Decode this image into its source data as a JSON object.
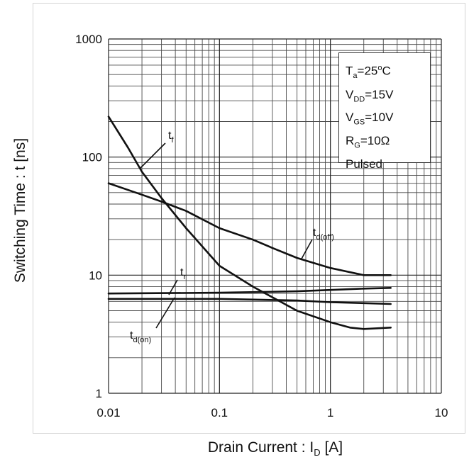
{
  "chart_data": {
    "type": "line",
    "xlabel": {
      "main": "Drain Current : I",
      "sub": "D",
      "tail": " [A]"
    },
    "ylabel": "Switching Time : t [ns]",
    "x_scale": "log",
    "y_scale": "log",
    "xlim": [
      0.01,
      10
    ],
    "ylim": [
      1,
      1000
    ],
    "grid": true,
    "x_ticks": [
      {
        "value": 0.01,
        "label": "0.01"
      },
      {
        "value": 0.1,
        "label": "0.1"
      },
      {
        "value": 1,
        "label": "1"
      },
      {
        "value": 10,
        "label": "10"
      }
    ],
    "y_ticks": [
      {
        "value": 1,
        "label": "1"
      },
      {
        "value": 10,
        "label": "10"
      },
      {
        "value": 100,
        "label": "100"
      },
      {
        "value": 1000,
        "label": "1000"
      }
    ],
    "conditions": [
      {
        "main": "T",
        "sub": "a",
        "tail": "=25",
        "sup": "o",
        "tail2": "C"
      },
      {
        "main": "V",
        "sub": "DD",
        "tail": "=15V"
      },
      {
        "main": "V",
        "sub": "GS",
        "tail": "=10V"
      },
      {
        "main": "R",
        "sub": "G",
        "tail": "=10Ω"
      },
      {
        "main": "Pulsed"
      }
    ],
    "series": [
      {
        "main": "t",
        "sub": "f",
        "points": [
          [
            0.01,
            220
          ],
          [
            0.015,
            120
          ],
          [
            0.02,
            75
          ],
          [
            0.03,
            45
          ],
          [
            0.05,
            25
          ],
          [
            0.1,
            12
          ],
          [
            0.2,
            8
          ],
          [
            0.3,
            6.5
          ],
          [
            0.5,
            5
          ],
          [
            1,
            4
          ],
          [
            1.5,
            3.6
          ],
          [
            2,
            3.5
          ],
          [
            3.5,
            3.6
          ]
        ]
      },
      {
        "main": "t",
        "sub": "d(off)",
        "points": [
          [
            0.01,
            60
          ],
          [
            0.02,
            48
          ],
          [
            0.03,
            42
          ],
          [
            0.05,
            35
          ],
          [
            0.1,
            25
          ],
          [
            0.2,
            20
          ],
          [
            0.3,
            17
          ],
          [
            0.5,
            14
          ],
          [
            1,
            11.5
          ],
          [
            2,
            10
          ],
          [
            3.5,
            10
          ]
        ]
      },
      {
        "main": "t",
        "sub": "r",
        "points": [
          [
            0.01,
            7
          ],
          [
            0.1,
            7.1
          ],
          [
            0.5,
            7.3
          ],
          [
            1,
            7.5
          ],
          [
            2,
            7.7
          ],
          [
            3.5,
            7.8
          ]
        ]
      },
      {
        "main": "t",
        "sub": "d(on)",
        "points": [
          [
            0.01,
            6.3
          ],
          [
            0.1,
            6.3
          ],
          [
            0.5,
            6.1
          ],
          [
            1,
            5.9
          ],
          [
            2,
            5.8
          ],
          [
            3.5,
            5.7
          ]
        ]
      }
    ]
  }
}
